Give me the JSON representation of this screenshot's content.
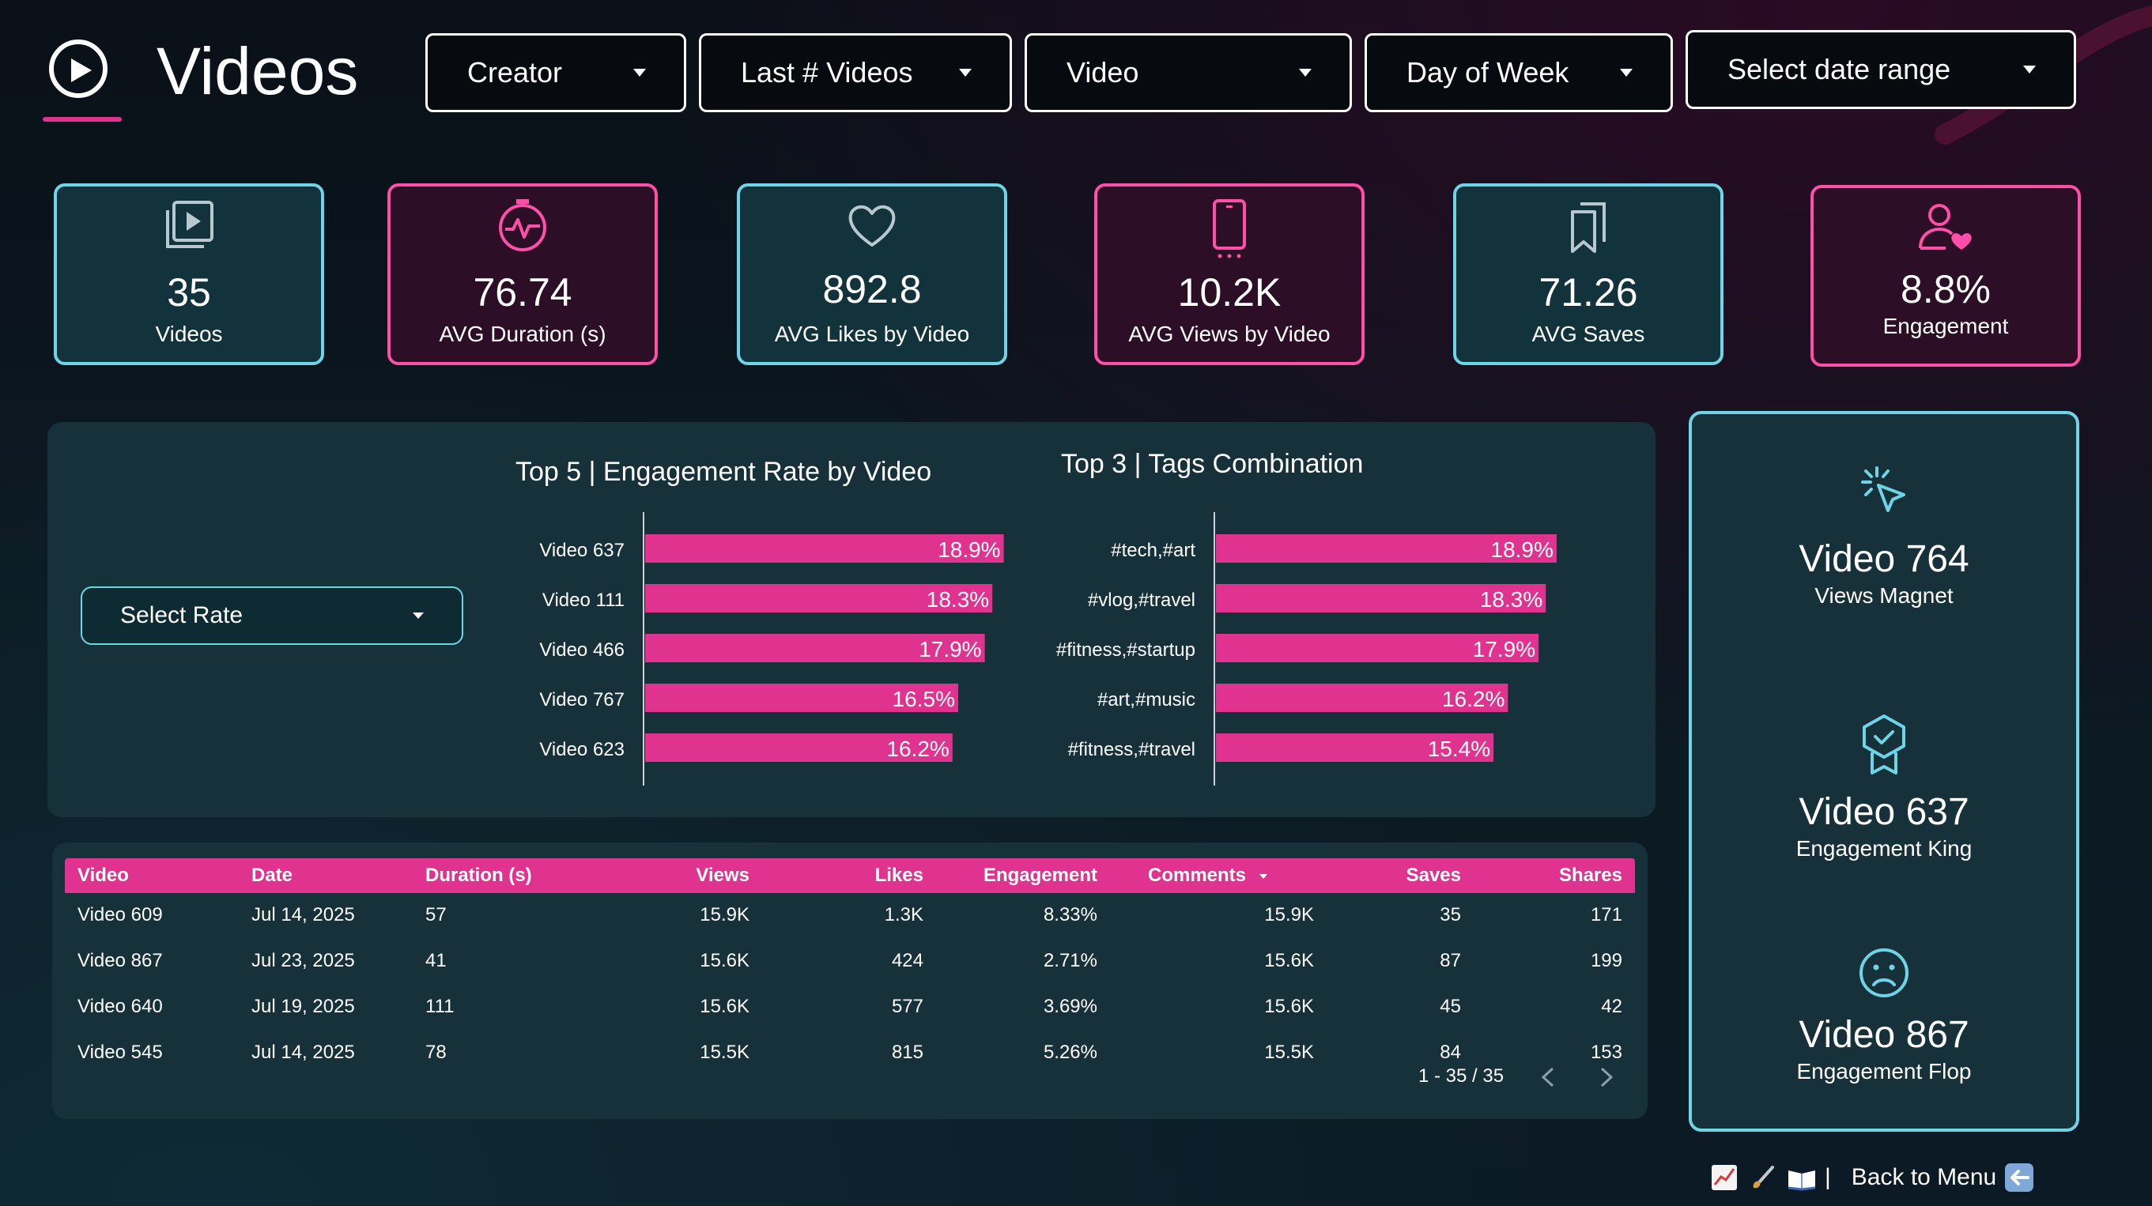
{
  "header": {
    "title": "Videos",
    "filters": [
      {
        "label": "Creator"
      },
      {
        "label": "Last # Videos"
      },
      {
        "label": "Video"
      },
      {
        "label": "Day of Week"
      },
      {
        "label": "Select date range"
      }
    ]
  },
  "kpis": [
    {
      "value": "35",
      "label": "Videos",
      "icon": "video-library-icon",
      "style": "teal"
    },
    {
      "value": "76.74",
      "label": "AVG Duration (s)",
      "icon": "stopwatch-icon",
      "style": "pink"
    },
    {
      "value": "892.8",
      "label": "AVG Likes by Video",
      "icon": "heart-icon",
      "style": "teal"
    },
    {
      "value": "10.2K",
      "label": "AVG Views by Video",
      "icon": "phone-icon",
      "style": "pink"
    },
    {
      "value": "71.26",
      "label": "AVG Saves",
      "icon": "bookmarks-icon",
      "style": "teal"
    },
    {
      "value": "8.8%",
      "label": "Engagement",
      "icon": "user-heart-icon",
      "style": "pink"
    }
  ],
  "colors": {
    "pink": "#e0338f",
    "teal": "#6fd4e6",
    "panel": "#17313b"
  },
  "select_rate": {
    "label": "Select Rate"
  },
  "chart_data": [
    {
      "type": "bar",
      "orientation": "horizontal",
      "title": "Top 5 | Engagement Rate by Video",
      "categories": [
        "Video 637",
        "Video 111",
        "Video 466",
        "Video 767",
        "Video 623"
      ],
      "values": [
        18.9,
        18.3,
        17.9,
        16.5,
        16.2
      ],
      "labels": [
        "18.9%",
        "18.3%",
        "17.9%",
        "16.5%",
        "16.2%"
      ],
      "color": "#e0338f"
    },
    {
      "type": "bar",
      "orientation": "horizontal",
      "title": "Top 3 | Tags Combination",
      "categories": [
        "#tech,#art",
        "#vlog,#travel",
        "#fitness,#startup",
        "#art,#music",
        "#fitness,#travel"
      ],
      "values": [
        18.9,
        18.3,
        17.9,
        16.2,
        15.4
      ],
      "labels": [
        "18.9%",
        "18.3%",
        "17.9%",
        "16.2%",
        "15.4%"
      ],
      "color": "#e0338f"
    }
  ],
  "table": {
    "columns": [
      "Video",
      "Date",
      "Duration (s)",
      "Views",
      "Likes",
      "Engagement",
      "Comments",
      "Saves",
      "Shares"
    ],
    "sort_column": "Comments",
    "rows": [
      [
        "Video 609",
        "Jul 14, 2025",
        "57",
        "15.9K",
        "1.3K",
        "8.33%",
        "15.9K",
        "35",
        "171"
      ],
      [
        "Video 867",
        "Jul 23, 2025",
        "41",
        "15.6K",
        "424",
        "2.71%",
        "15.6K",
        "87",
        "199"
      ],
      [
        "Video 640",
        "Jul 19, 2025",
        "111",
        "15.6K",
        "577",
        "3.69%",
        "15.6K",
        "45",
        "42"
      ],
      [
        "Video 545",
        "Jul 14, 2025",
        "78",
        "15.5K",
        "815",
        "5.26%",
        "15.5K",
        "84",
        "153"
      ]
    ],
    "pagination": "1 - 35 / 35"
  },
  "highlights": [
    {
      "title": "Video 764",
      "subtitle": "Views Magnet",
      "icon": "cursor-click-icon"
    },
    {
      "title": "Video 637",
      "subtitle": "Engagement King",
      "icon": "award-badge-icon"
    },
    {
      "title": "Video 867",
      "subtitle": "Engagement Flop",
      "icon": "sad-face-icon"
    }
  ],
  "footer": {
    "icons": [
      "chart-emoji-icon",
      "brush-emoji-icon",
      "book-emoji-icon"
    ],
    "separator": "|",
    "back_label": "Back to Menu",
    "back_icon": "back-arrow-icon"
  }
}
